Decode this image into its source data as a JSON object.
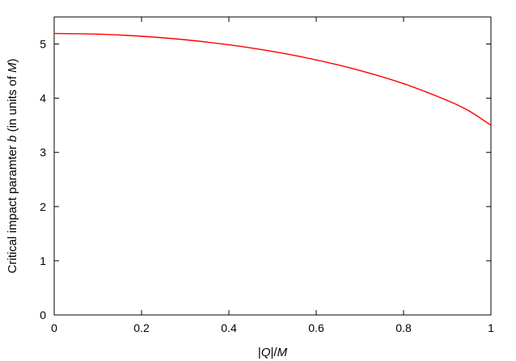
{
  "chart_data": {
    "type": "line",
    "title": "",
    "xlabel": {
      "parts": [
        {
          "text": "|",
          "italic": false
        },
        {
          "text": "Q",
          "italic": true
        },
        {
          "text": "|/",
          "italic": false
        },
        {
          "text": "M",
          "italic": true
        }
      ]
    },
    "ylabel": {
      "parts": [
        {
          "text": "Critical impact paramter ",
          "italic": false
        },
        {
          "text": "b",
          "italic": true
        },
        {
          "text": " (in units of ",
          "italic": false
        },
        {
          "text": "M",
          "italic": true
        },
        {
          "text": ")",
          "italic": false
        }
      ]
    },
    "xlim": [
      0,
      1
    ],
    "ylim": [
      0,
      5.5
    ],
    "xticks": [
      0,
      0.2,
      0.4,
      0.6,
      0.8,
      1
    ],
    "xtick_labels": [
      "0",
      "0.2",
      "0.4",
      "0.6",
      "0.8",
      "1"
    ],
    "yticks": [
      0,
      1,
      2,
      3,
      4,
      5
    ],
    "ytick_labels": [
      "0",
      "1",
      "2",
      "3",
      "4",
      "5"
    ],
    "grid": false,
    "legend": "none",
    "series": [
      {
        "color": "#ff0000",
        "x": [
          0,
          0.1,
          0.2,
          0.3,
          0.4,
          0.5,
          0.6,
          0.7,
          0.8,
          0.9,
          0.95,
          1.0
        ],
        "y": [
          5.196,
          5.183,
          5.144,
          5.079,
          4.986,
          4.863,
          4.707,
          4.512,
          4.269,
          3.959,
          3.765,
          3.5
        ]
      }
    ]
  }
}
